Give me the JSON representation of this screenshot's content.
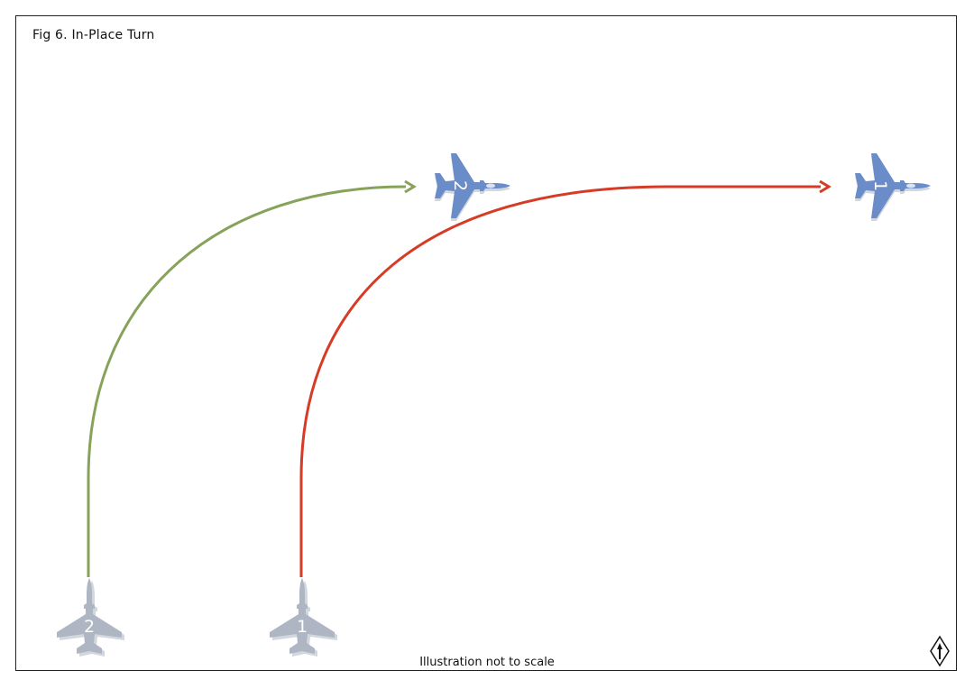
{
  "figure": {
    "title": "Fig 6. In-Place Turn",
    "footer_note": "Illustration not to scale"
  },
  "colors": {
    "path_lead": "#d63b25",
    "path_wing": "#87a25a",
    "aircraft_start": "#aeb6c4",
    "aircraft_end": "#6a8cc8",
    "aircraft_shadow": "#d2d6dd",
    "frame": "#222222"
  },
  "aircraft": {
    "lead_start": {
      "label": "1",
      "state": "start",
      "heading": "north"
    },
    "wing_start": {
      "label": "2",
      "state": "start",
      "heading": "north"
    },
    "lead_end": {
      "label": "1",
      "state": "end",
      "heading": "east"
    },
    "wing_end": {
      "label": "2",
      "state": "end",
      "heading": "east"
    }
  },
  "icons": {
    "compass": "north-indicator-icon",
    "aircraft": "jet-aircraft-icon",
    "arrowhead": "arrowhead-icon"
  }
}
